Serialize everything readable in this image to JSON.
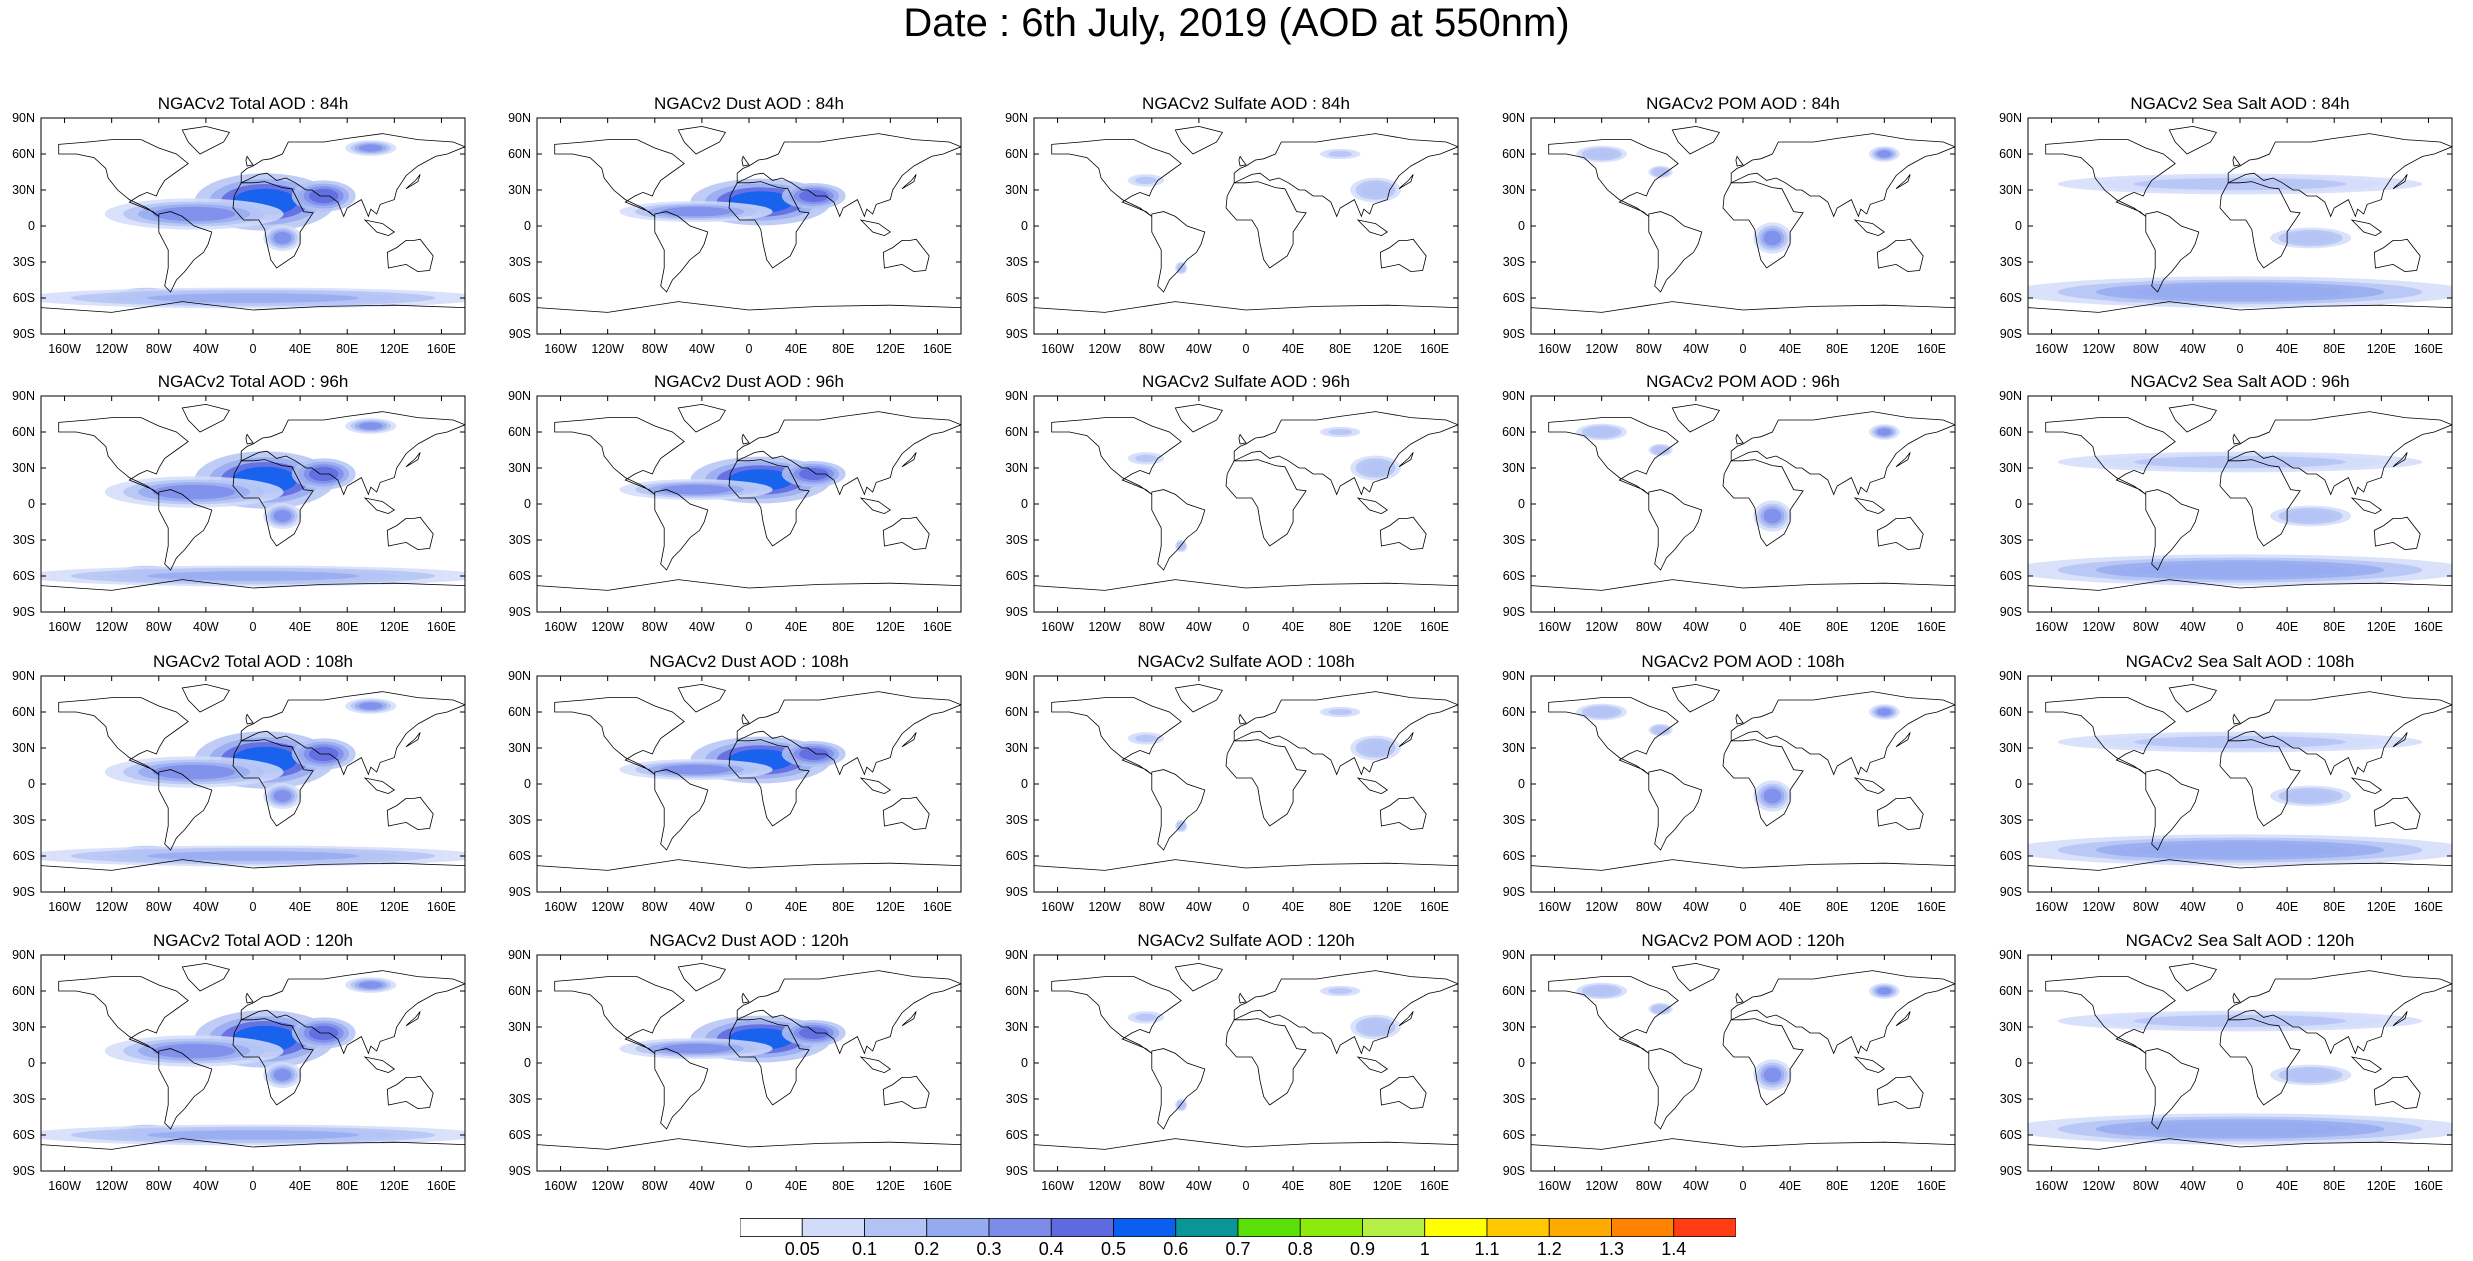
{
  "title": "Date : 6th July, 2019 (AOD at 550nm)",
  "lat_labels": [
    "90N",
    "60N",
    "30N",
    "0",
    "30S",
    "60S",
    "90S"
  ],
  "lon_labels": [
    "160W",
    "120W",
    "80W",
    "40W",
    "0",
    "40E",
    "80E",
    "120E",
    "160E"
  ],
  "species": [
    {
      "key": "total",
      "name": "Total AOD"
    },
    {
      "key": "dust",
      "name": "Dust AOD"
    },
    {
      "key": "sulfate",
      "name": "Sulfate AOD"
    },
    {
      "key": "pom",
      "name": "POM AOD"
    },
    {
      "key": "seasalt",
      "name": "Sea Salt AOD"
    }
  ],
  "panels": [
    [
      "NGACv2 Total AOD : 84h",
      "NGACv2 Dust AOD : 84h",
      "NGACv2 Sulfate AOD : 84h",
      "NGACv2 POM AOD : 84h",
      "NGACv2 Sea Salt AOD : 84h"
    ],
    [
      "NGACv2 Total AOD : 96h",
      "NGACv2 Dust AOD : 96h",
      "NGACv2 Sulfate AOD : 96h",
      "NGACv2 POM AOD : 96h",
      "NGACv2 Sea Salt AOD : 96h"
    ],
    [
      "NGACv2 Total AOD : 108h",
      "NGACv2 Dust AOD : 108h",
      "NGACv2 Sulfate AOD : 108h",
      "NGACv2 POM AOD : 108h",
      "NGACv2 Sea Salt AOD : 108h"
    ],
    [
      "NGACv2 Total AOD : 120h",
      "NGACv2 Dust AOD : 120h",
      "NGACv2 Sulfate AOD : 120h",
      "NGACv2 POM AOD : 120h",
      "NGACv2 Sea Salt  AOD : 120h"
    ]
  ],
  "colorbar": {
    "labels": [
      "0.05",
      "0.1",
      "0.2",
      "0.3",
      "0.4",
      "0.5",
      "0.6",
      "0.7",
      "0.8",
      "0.9",
      "1",
      "1.1",
      "1.2",
      "1.3",
      "1.4"
    ],
    "colors": [
      "#ffffff",
      "#d2dcfa",
      "#b4c3f5",
      "#96aaf0",
      "#7d8ceb",
      "#5f69e1",
      "#0a5ff0",
      "#0a9696",
      "#5ae10a",
      "#8ceb0a",
      "#b4f046",
      "#ffff00",
      "#ffc800",
      "#ffaa00",
      "#ff8200",
      "#ff3c14"
    ]
  },
  "plumes": {
    "total": [
      {
        "lon": 10,
        "lat": 20,
        "rx": 55,
        "ry": 22,
        "level": 0.5
      },
      {
        "lon": 60,
        "lat": 25,
        "rx": 25,
        "ry": 12,
        "level": 0.45
      },
      {
        "lon": -50,
        "lat": 10,
        "rx": 70,
        "ry": 12,
        "level": 0.3
      },
      {
        "lon": 25,
        "lat": -10,
        "rx": 15,
        "ry": 10,
        "level": 0.35
      },
      {
        "lon": -90,
        "lat": -58,
        "rx": 25,
        "ry": 6,
        "level": 0.45
      },
      {
        "lon": 0,
        "lat": -60,
        "rx": 180,
        "ry": 8,
        "level": 0.22
      },
      {
        "lon": 100,
        "lat": 65,
        "rx": 20,
        "ry": 6,
        "level": 0.3
      }
    ],
    "dust": [
      {
        "lon": 10,
        "lat": 20,
        "rx": 55,
        "ry": 18,
        "level": 0.55
      },
      {
        "lon": 55,
        "lat": 25,
        "rx": 25,
        "ry": 10,
        "level": 0.45
      },
      {
        "lon": -45,
        "lat": 12,
        "rx": 60,
        "ry": 8,
        "level": 0.3
      }
    ],
    "sulfate": [
      {
        "lon": 110,
        "lat": 30,
        "rx": 25,
        "ry": 12,
        "level": 0.15
      },
      {
        "lon": -85,
        "lat": 38,
        "rx": 18,
        "ry": 6,
        "level": 0.12
      },
      {
        "lon": 80,
        "lat": 60,
        "rx": 20,
        "ry": 5,
        "level": 0.1
      },
      {
        "lon": -55,
        "lat": -35,
        "rx": 6,
        "ry": 6,
        "level": 0.14
      }
    ],
    "pom": [
      {
        "lon": 25,
        "lat": -10,
        "rx": 15,
        "ry": 12,
        "level": 0.35
      },
      {
        "lon": 120,
        "lat": 60,
        "rx": 12,
        "ry": 6,
        "level": 0.3
      },
      {
        "lon": -120,
        "lat": 60,
        "rx": 25,
        "ry": 8,
        "level": 0.18
      },
      {
        "lon": -70,
        "lat": 45,
        "rx": 12,
        "ry": 6,
        "level": 0.15
      }
    ],
    "seasalt": [
      {
        "lon": -95,
        "lat": -58,
        "rx": 20,
        "ry": 6,
        "level": 0.45
      },
      {
        "lon": 0,
        "lat": -55,
        "rx": 180,
        "ry": 12,
        "level": 0.25
      },
      {
        "lon": 0,
        "lat": 35,
        "rx": 180,
        "ry": 10,
        "level": 0.12
      },
      {
        "lon": 60,
        "lat": -10,
        "rx": 40,
        "ry": 10,
        "level": 0.14
      }
    ]
  }
}
